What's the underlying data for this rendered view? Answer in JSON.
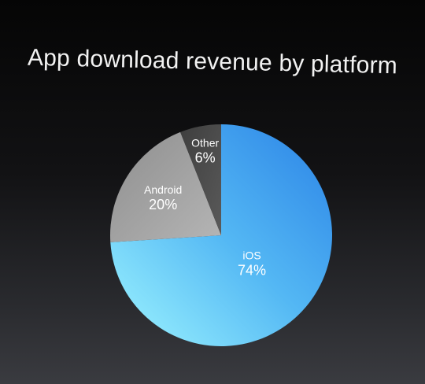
{
  "chart_data": {
    "type": "pie",
    "title": "App download revenue by platform",
    "categories": [
      "iOS",
      "Android",
      "Other"
    ],
    "values": [
      74,
      20,
      6
    ],
    "value_labels": [
      "74%",
      "20%",
      "6%"
    ],
    "colors": {
      "iOS": "#5ab8f2",
      "Android": "#9b9b9b",
      "Other": "#4a4a4a"
    },
    "start": "12 o'clock",
    "direction": "clockwise",
    "legend": "none"
  }
}
